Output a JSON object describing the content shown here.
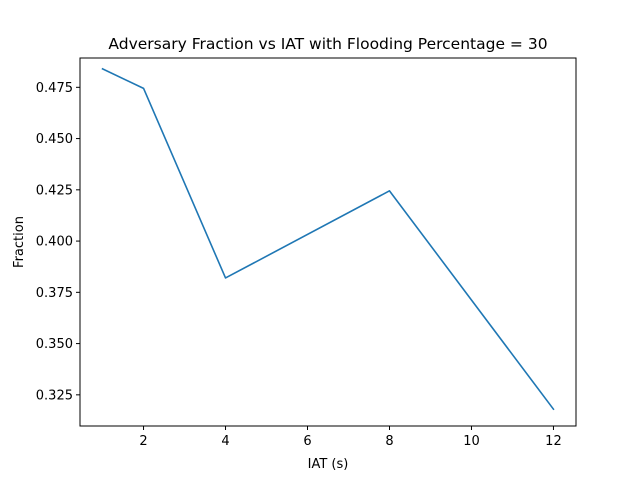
{
  "chart_data": {
    "type": "line",
    "title": "Adversary Fraction vs IAT with Flooding Percentage = 30",
    "xlabel": "IAT (s)",
    "ylabel": "Fraction",
    "x": [
      1,
      2,
      4,
      8,
      12
    ],
    "series": [
      {
        "values": [
          0.484,
          0.4745,
          0.382,
          0.4245,
          0.318
        ],
        "color": "#1f77b4"
      }
    ],
    "xlim": [
      0.45,
      12.55
    ],
    "ylim": [
      0.3098,
      0.4893
    ],
    "xticks": [
      2,
      4,
      6,
      8,
      10,
      12
    ],
    "xtick_labels": [
      "2",
      "4",
      "6",
      "8",
      "10",
      "12"
    ],
    "yticks": [
      0.325,
      0.35,
      0.375,
      0.4,
      0.425,
      0.45,
      0.475
    ],
    "ytick_labels": [
      "0.325",
      "0.350",
      "0.375",
      "0.400",
      "0.425",
      "0.450",
      "0.475"
    ],
    "grid": false,
    "legend": "none"
  }
}
